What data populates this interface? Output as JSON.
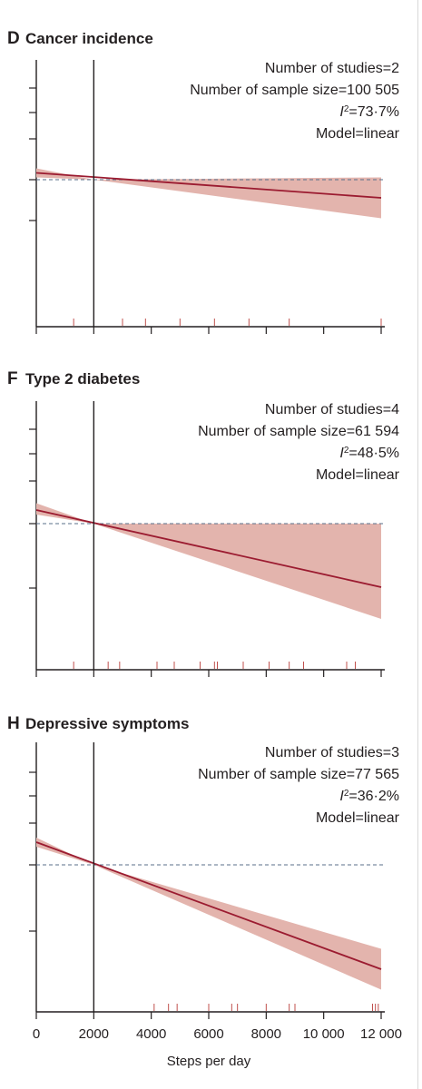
{
  "colors": {
    "line": "#9b1b30",
    "band": "#e3b4ad",
    "rug": "#c0504d",
    "reference": "#5a6f8a",
    "axis": "#231f20"
  },
  "chart_data": [
    {
      "type": "line",
      "panel": "D",
      "title": "Cancer incidence",
      "stats": [
        "Number of studies=2",
        "Number of sample size=100 505",
        "I²=73·7%",
        "Model=linear"
      ],
      "stat_i2": {
        "i": "I",
        "sup": "2",
        "rest": "=73·7%"
      },
      "xlim": [
        0,
        12000
      ],
      "ylim": [
        0.5,
        1.5
      ],
      "reference_x": 2000,
      "reference_y": 1.0,
      "series": [
        {
          "x": [
            0,
            12000
          ],
          "y": [
            1.03,
            0.92
          ],
          "lower": [
            1.01,
            0.83
          ],
          "upper": [
            1.05,
            1.01
          ]
        }
      ],
      "rug": [
        1300,
        3000,
        3800,
        5000,
        6200,
        7400,
        8800,
        12000
      ]
    },
    {
      "type": "line",
      "panel": "F",
      "title": "Type 2 diabetes",
      "stats": [
        "Number of studies=4",
        "Number of sample size=61 594",
        "I²=48·5%",
        "Model=linear"
      ],
      "stat_i2": {
        "i": "I",
        "sup": "2",
        "rest": "=48·5%"
      },
      "xlim": [
        0,
        12000
      ],
      "ylim": [
        0.5,
        1.5
      ],
      "reference_x": 2000,
      "reference_y": 1.0,
      "series": [
        {
          "x": [
            0,
            12000
          ],
          "y": [
            1.06,
            0.72
          ],
          "lower": [
            1.04,
            0.58
          ],
          "upper": [
            1.09,
            1.0
          ]
        }
      ],
      "rug": [
        1300,
        2500,
        2900,
        4200,
        4800,
        5700,
        6200,
        6300,
        7200,
        8100,
        8800,
        9300,
        10800,
        11100
      ]
    },
    {
      "type": "line",
      "panel": "H",
      "title": "Depressive symptoms",
      "stats": [
        "Number of studies=3",
        "Number of sample size=77 565",
        "I²=36·2%",
        "Model=linear"
      ],
      "stat_i2": {
        "i": "I",
        "sup": "2",
        "rest": "=36·2%"
      },
      "xlim": [
        0,
        12000
      ],
      "ylim": [
        0.5,
        1.5
      ],
      "reference_x": 2000,
      "reference_y": 1.0,
      "series": [
        {
          "x": [
            0,
            12000
          ],
          "y": [
            1.1,
            0.54
          ],
          "lower": [
            1.08,
            0.45
          ],
          "upper": [
            1.12,
            0.63
          ]
        }
      ],
      "rug": [
        4100,
        4600,
        4900,
        6000,
        6800,
        7000,
        8000,
        8800,
        9000,
        11700,
        11800,
        11900
      ]
    }
  ],
  "x_axis": {
    "title": "Steps per day",
    "ticks": [
      "0",
      "2000",
      "4000",
      "6000",
      "8000",
      "10 000",
      "12 000"
    ],
    "tick_values": [
      0,
      2000,
      4000,
      6000,
      8000,
      10000,
      12000
    ]
  }
}
